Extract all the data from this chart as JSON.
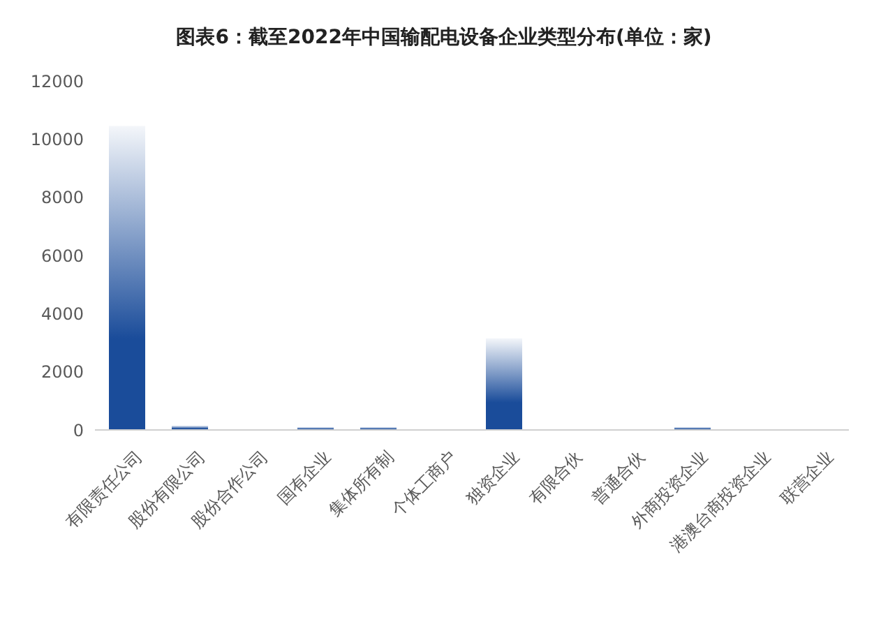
{
  "chart_data": {
    "type": "bar",
    "title": "图表6：截至2022年中国输配电设备企业类型分布(单位：家)",
    "categories": [
      "有限责任公司",
      "股份有限公司",
      "股份合作公司",
      "国有企业",
      "集体所有制",
      "个体工商户",
      "独资企业",
      "有限合伙",
      "普通合伙",
      "外商投资企业",
      "港澳台商投资企业",
      "联营企业"
    ],
    "values": [
      10450,
      150,
      0,
      100,
      100,
      0,
      3150,
      0,
      0,
      100,
      0,
      0
    ],
    "color": "#1a4c9a",
    "ylim": [
      0,
      12000
    ],
    "yticks": [
      0,
      2000,
      4000,
      6000,
      8000,
      10000,
      12000
    ],
    "grid": false
  }
}
